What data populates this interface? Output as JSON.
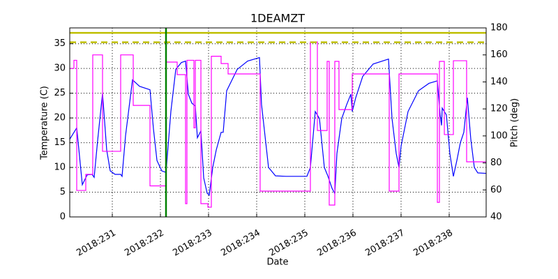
{
  "chart_data": {
    "type": "line",
    "title": "1DEAMZT",
    "xlabel": "Date",
    "ylabel": "Temperature (C)",
    "y2label": "Pitch (deg)",
    "y2color": "#ff00ff",
    "xlim": [
      230.116,
      238.768
    ],
    "ylim": [
      0,
      38.2
    ],
    "y2lim": [
      40,
      180
    ],
    "xticks": [
      {
        "value": 231,
        "label": "2018:231"
      },
      {
        "value": 232,
        "label": "2018:232"
      },
      {
        "value": 233,
        "label": "2018:233"
      },
      {
        "value": 234,
        "label": "2018:234"
      },
      {
        "value": 235,
        "label": "2018:235"
      },
      {
        "value": 236,
        "label": "2018:236"
      },
      {
        "value": 237,
        "label": "2018:237"
      },
      {
        "value": 238,
        "label": "2018:238"
      }
    ],
    "yticks": [
      0,
      5,
      10,
      15,
      20,
      25,
      30,
      35
    ],
    "y2ticks": [
      40,
      60,
      80,
      100,
      120,
      140,
      160,
      180
    ],
    "grid": true,
    "hlines": [
      {
        "value": 37.2,
        "color": "#bfbf00",
        "style": "solid"
      },
      {
        "value": 35.3,
        "color": "#bfbf00",
        "style": "dashed"
      }
    ],
    "vlines": [
      {
        "value": 232.116,
        "color": "#008000"
      }
    ],
    "series": [
      {
        "color": "#0000ff",
        "axis": "y",
        "x": [
          230.116,
          230.261,
          230.377,
          230.478,
          230.58,
          230.623,
          230.696,
          230.797,
          230.884,
          230.957,
          231.058,
          231.174,
          231.203,
          231.275,
          231.42,
          231.565,
          231.783,
          231.855,
          231.928,
          232.029,
          232.116,
          232.217,
          232.319,
          232.435,
          232.522,
          232.58,
          232.652,
          232.725,
          232.768,
          232.841,
          232.899,
          232.971,
          233.014,
          233.087,
          233.159,
          233.261,
          233.304,
          233.377,
          233.594,
          233.812,
          234.058,
          234.101,
          234.246,
          234.391,
          234.609,
          235.043,
          235.116,
          235.217,
          235.304,
          235.406,
          235.478,
          235.565,
          235.623,
          235.667,
          235.768,
          235.87,
          235.957,
          235.986,
          236.058,
          236.203,
          236.42,
          236.739,
          236.812,
          236.899,
          236.957,
          237.0,
          237.145,
          237.362,
          237.58,
          237.754,
          237.812,
          237.841,
          237.855,
          237.942,
          238.014,
          238.087,
          238.159,
          238.232,
          238.304,
          238.377,
          238.449,
          238.522,
          238.594,
          238.768
        ],
        "values": [
          15.7,
          18,
          6.5,
          8.5,
          8.6,
          8,
          15.5,
          25,
          13.5,
          9.3,
          8.6,
          8.6,
          8.2,
          16.4,
          27.7,
          26.4,
          25.7,
          17.8,
          11.4,
          9.3,
          9.0,
          21.3,
          29.8,
          31.2,
          31.5,
          24.8,
          23,
          22.4,
          16,
          17.4,
          7.9,
          4.8,
          4.4,
          10,
          13.5,
          17.1,
          17.1,
          25.5,
          29.8,
          31.5,
          32.2,
          22.7,
          10,
          8.3,
          8.2,
          8.2,
          10,
          21.3,
          19.9,
          10,
          8.3,
          5.8,
          4.7,
          12.8,
          19.9,
          22.7,
          24.8,
          21.3,
          24.1,
          28.4,
          30.9,
          31.9,
          19.9,
          12.8,
          10,
          14.3,
          21.3,
          25.5,
          27,
          27.5,
          20.6,
          18.5,
          22,
          20.6,
          12.8,
          8.2,
          11.4,
          15,
          17.1,
          24.1,
          15.7,
          10,
          8.9,
          8.8
        ]
      },
      {
        "color": "#ff00ff",
        "axis": "y2",
        "x": [
          230.116,
          230.203,
          230.203,
          230.261,
          230.261,
          230.449,
          230.449,
          230.594,
          230.594,
          230.797,
          230.797,
          231.174,
          231.174,
          231.435,
          231.435,
          231.783,
          231.783,
          232.116,
          232.116,
          232.348,
          232.348,
          232.522,
          232.522,
          232.551,
          232.551,
          232.696,
          232.696,
          232.725,
          232.725,
          232.841,
          232.841,
          232.986,
          232.986,
          233.058,
          233.058,
          233.261,
          233.261,
          233.406,
          233.406,
          234.072,
          234.072,
          235.116,
          235.116,
          235.261,
          235.261,
          235.464,
          235.464,
          235.507,
          235.507,
          235.623,
          235.623,
          235.71,
          235.71,
          235.986,
          235.986,
          236.754,
          236.754,
          236.957,
          236.957,
          237.754,
          237.754,
          237.797,
          237.797,
          237.899,
          237.899,
          238.087,
          238.087,
          238.362,
          238.362,
          238.768
        ],
        "values": [
          150,
          150,
          156,
          156,
          59.6,
          59.6,
          71.5,
          71.5,
          160,
          160,
          88.6,
          88.6,
          160,
          160,
          122.6,
          122.6,
          63,
          63,
          154.7,
          154.7,
          145.4,
          145.4,
          49.8,
          49.8,
          156,
          156,
          106,
          106,
          156,
          156,
          49.8,
          49.8,
          47.2,
          47.2,
          159,
          159,
          153.6,
          153.6,
          145.9,
          145.9,
          59.1,
          59.1,
          169.6,
          169.6,
          104,
          104,
          155.2,
          155.2,
          48.8,
          48.8,
          155.2,
          155.2,
          119.5,
          119.5,
          145.9,
          145.9,
          59.1,
          59.1,
          145.9,
          145.9,
          50.8,
          50.8,
          155.2,
          155.2,
          101,
          101,
          155.7,
          155.7,
          80.8,
          80.8
        ]
      }
    ]
  }
}
